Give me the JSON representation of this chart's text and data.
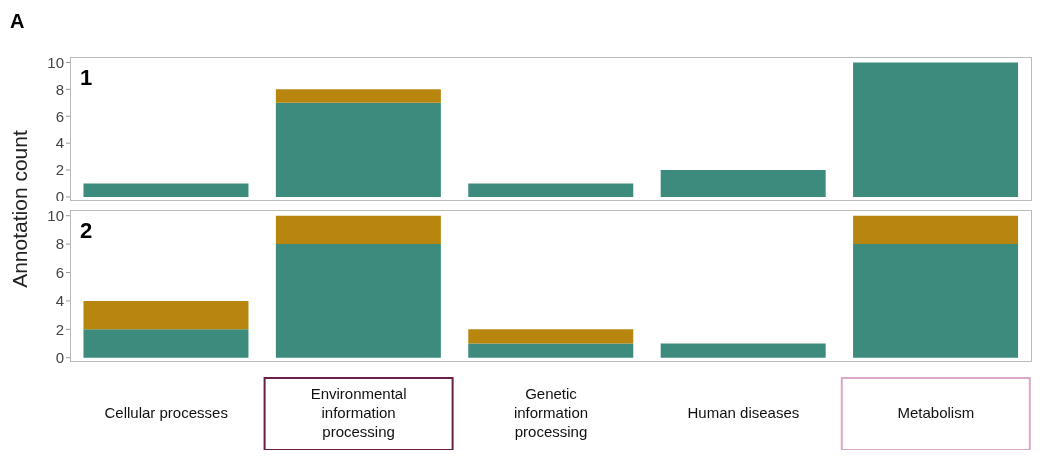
{
  "chart_data": [
    {
      "type": "bar",
      "title": "1",
      "annotations": [
        "A"
      ],
      "categories": [
        null,
        null,
        null,
        null,
        null
      ],
      "stacked": true,
      "series": [
        {
          "color": "#3d8b7d",
          "values": [
            1,
            7,
            1,
            2,
            10
          ]
        },
        {
          "color": "#b8860f",
          "values": [
            0,
            1,
            0,
            0,
            0
          ]
        }
      ],
      "ylim": [
        -0.3,
        10.4
      ],
      "yticks": [
        0,
        2,
        4,
        6,
        8,
        10
      ],
      "tick_labels": "y"
    },
    {
      "type": "bar",
      "title": "2",
      "ylabel": "Annotation count",
      "categories": [
        "Cellular processes",
        "Environmental information processing",
        "Genetic information processing",
        "Human diseases",
        "Metabolism"
      ],
      "stacked": true,
      "series": [
        {
          "color": "#3d8b7d",
          "values": [
            2,
            8,
            1,
            1,
            8
          ]
        },
        {
          "color": "#b8860f",
          "values": [
            2,
            2,
            1,
            0,
            2
          ]
        }
      ],
      "ylim": [
        -0.3,
        10.4
      ],
      "yticks": [
        0,
        2,
        4,
        6,
        8,
        10
      ]
    }
  ]
}
